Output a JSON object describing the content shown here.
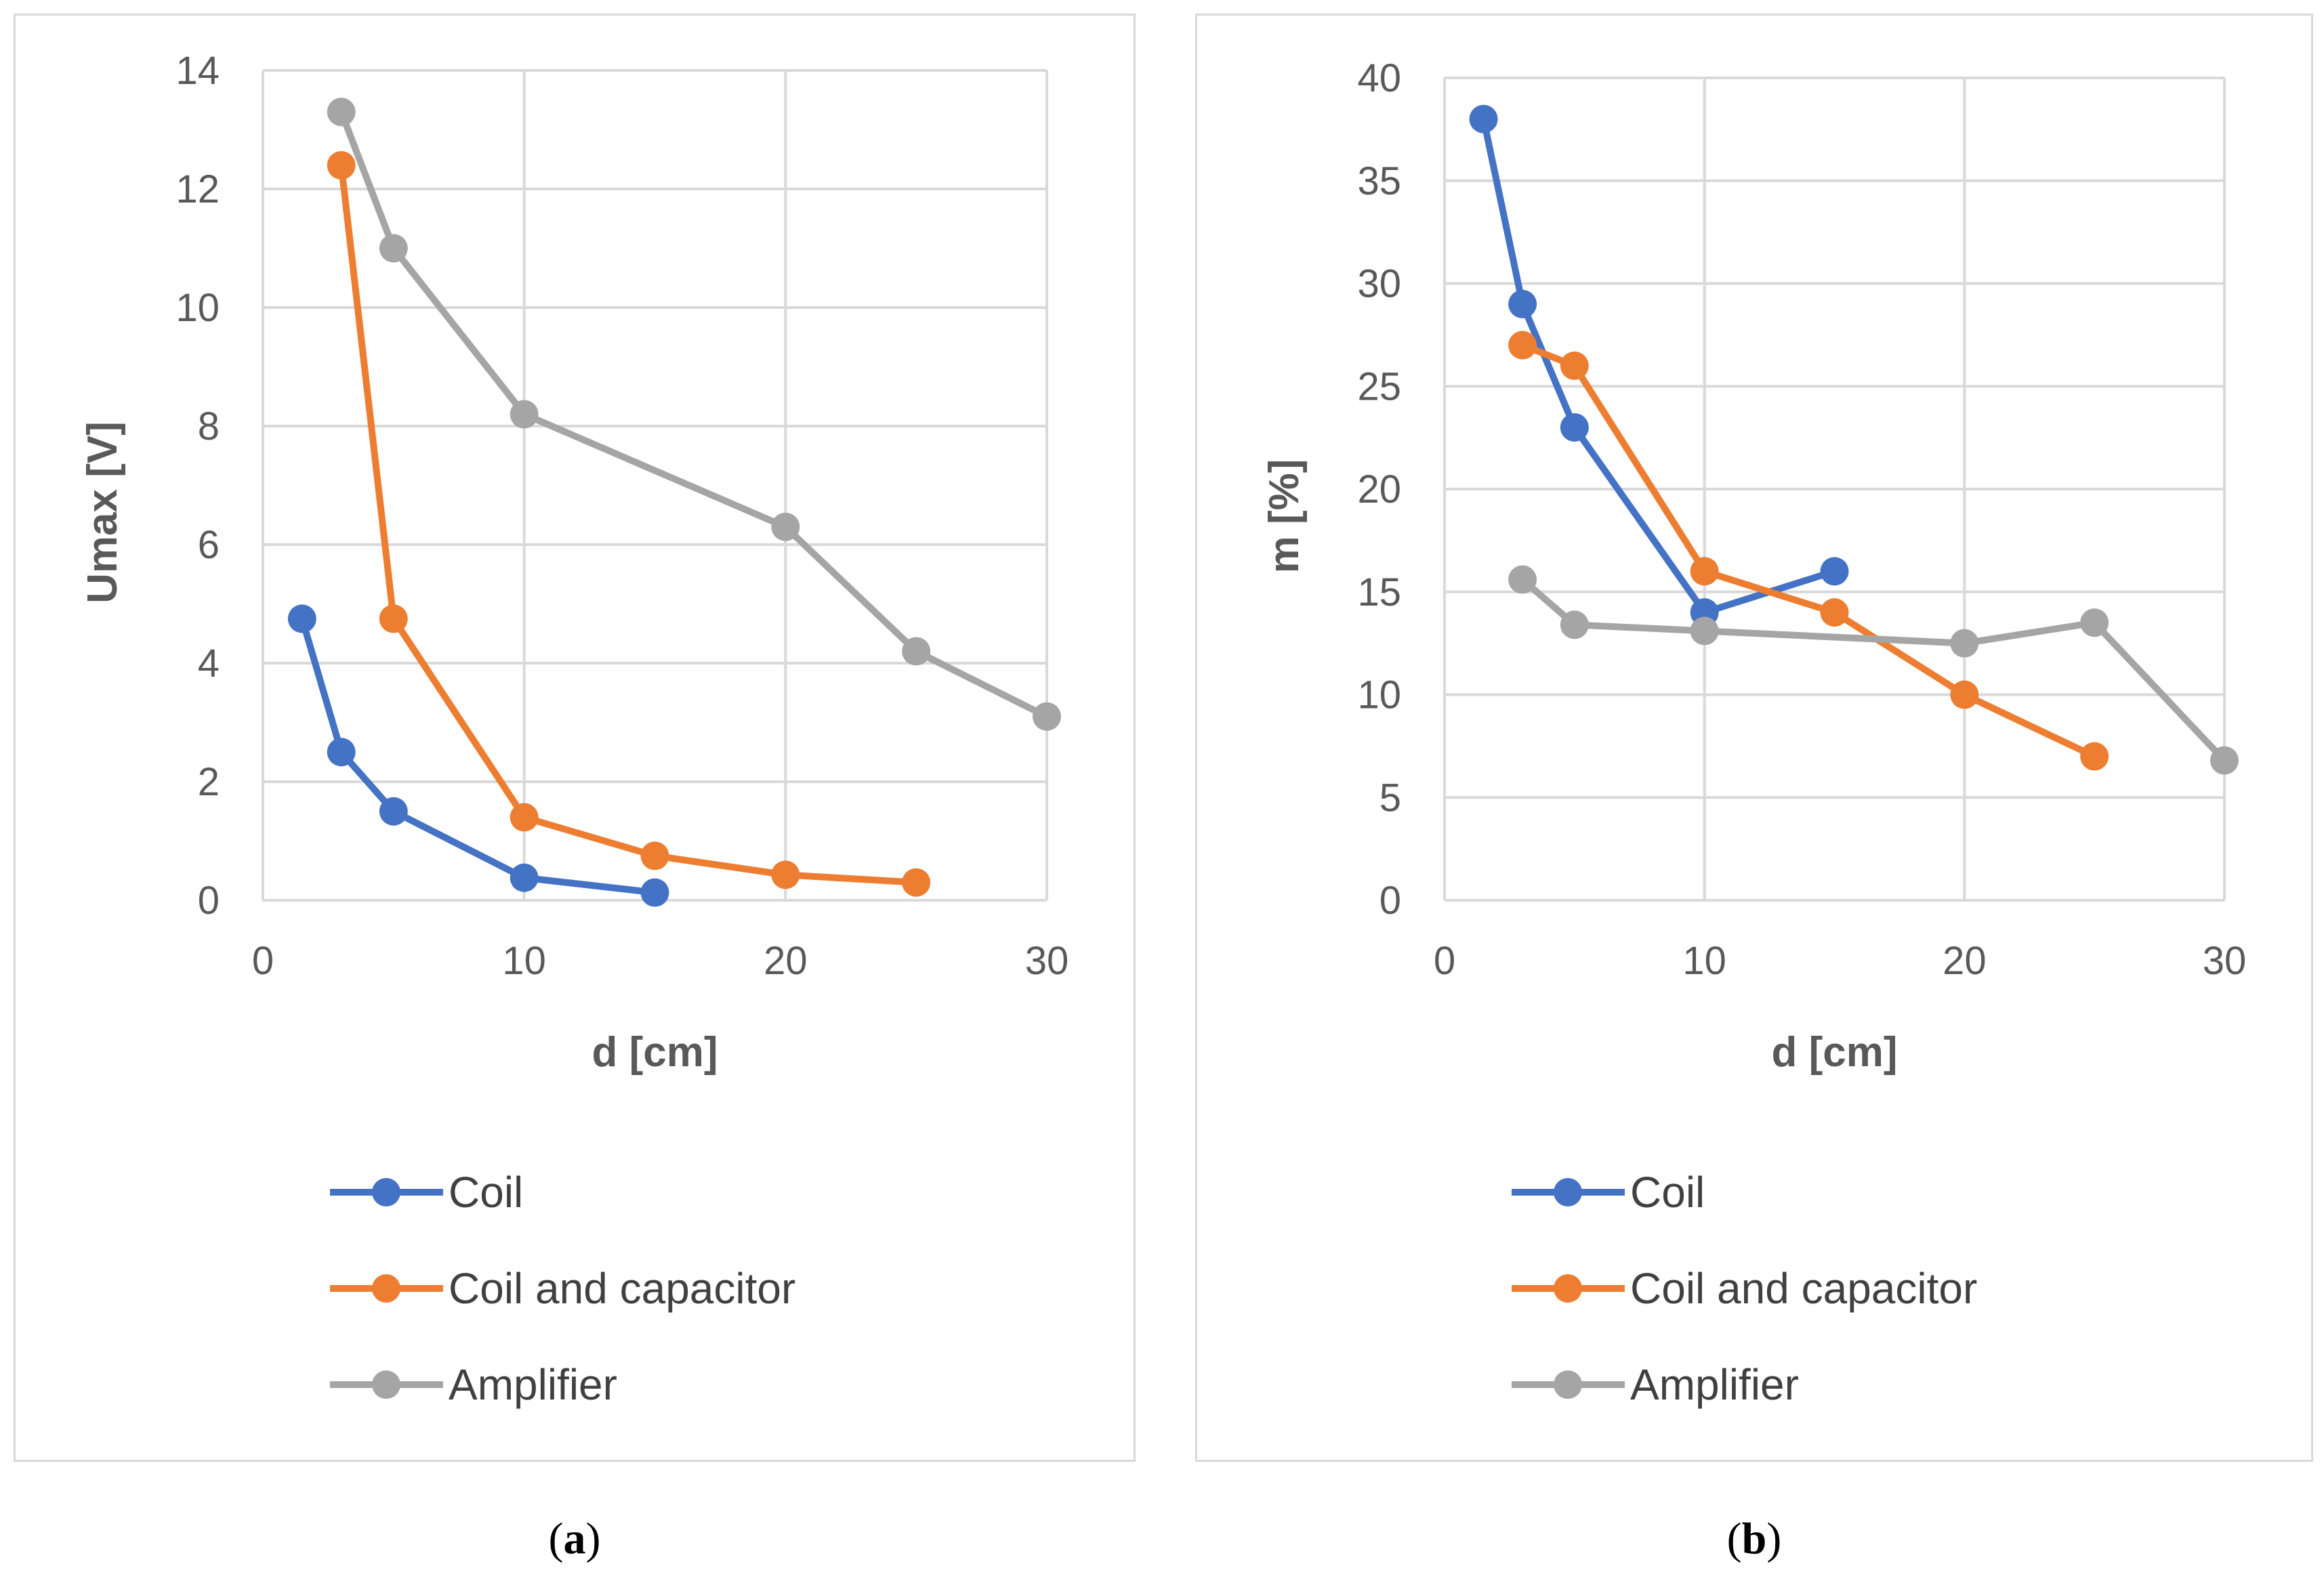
{
  "chart_data": [
    {
      "type": "line",
      "caption_letter": "a",
      "xlabel": "d [cm]",
      "ylabel": "Umax [V]",
      "xlim": [
        0,
        30
      ],
      "ylim": [
        0,
        14
      ],
      "xticks": [
        0,
        10,
        20,
        30
      ],
      "yticks": [
        0,
        2,
        4,
        6,
        8,
        10,
        12,
        14
      ],
      "grid": true,
      "legend_position": "bottom",
      "series": [
        {
          "name": "Coil",
          "color": "#4472c4",
          "x": [
            1.5,
            3,
            5,
            10,
            15
          ],
          "y": [
            4.75,
            2.5,
            1.5,
            0.38,
            0.13
          ]
        },
        {
          "name": "Coil and capacitor",
          "color": "#ed7d31",
          "x": [
            3,
            5,
            10,
            15,
            20,
            25
          ],
          "y": [
            12.4,
            4.75,
            1.4,
            0.75,
            0.43,
            0.3
          ]
        },
        {
          "name": "Amplifier",
          "color": "#a5a5a5",
          "x": [
            3,
            5,
            10,
            20,
            25,
            30
          ],
          "y": [
            13.3,
            11.0,
            8.2,
            6.3,
            4.2,
            3.1
          ]
        }
      ]
    },
    {
      "type": "line",
      "caption_letter": "b",
      "xlabel": "d [cm]",
      "ylabel": "m [%]",
      "xlim": [
        0,
        30
      ],
      "ylim": [
        0,
        40
      ],
      "xticks": [
        0,
        10,
        20,
        30
      ],
      "yticks": [
        0,
        5,
        10,
        15,
        20,
        25,
        30,
        35,
        40
      ],
      "grid": true,
      "legend_position": "bottom",
      "series": [
        {
          "name": "Coil",
          "color": "#4472c4",
          "x": [
            1.5,
            3,
            5,
            10,
            15
          ],
          "y": [
            38,
            29,
            23,
            14,
            16
          ]
        },
        {
          "name": "Coil and capacitor",
          "color": "#ed7d31",
          "x": [
            3,
            5,
            10,
            15,
            20,
            25
          ],
          "y": [
            27,
            26,
            16,
            14,
            10,
            7
          ]
        },
        {
          "name": "Amplifier",
          "color": "#a5a5a5",
          "x": [
            3,
            5,
            10,
            20,
            25,
            30
          ],
          "y": [
            15.6,
            13.4,
            13.1,
            12.5,
            13.5,
            6.8
          ]
        }
      ]
    }
  ]
}
